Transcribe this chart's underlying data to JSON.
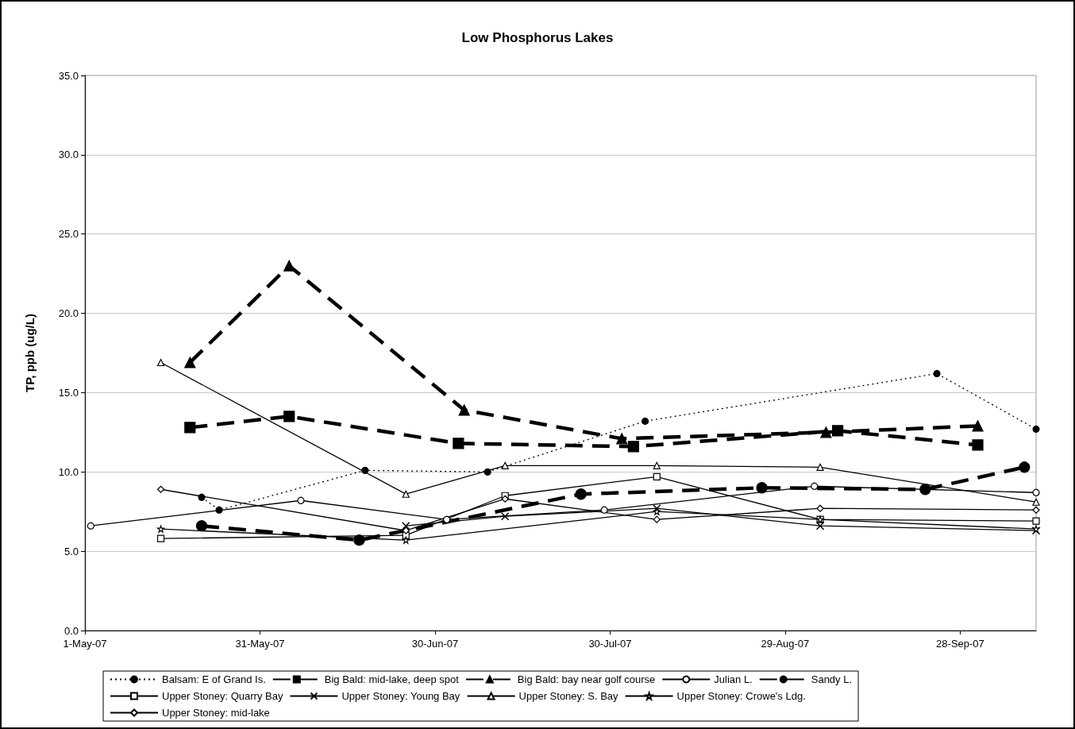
{
  "chart_data": {
    "type": "line",
    "title": "Low Phosphorus Lakes",
    "ylabel": "TP, ppb (ug/L)",
    "xlim": [
      "2007-05-01",
      "2007-10-11"
    ],
    "xticks": [
      {
        "value": "2007-05-01",
        "label": "1-May-07"
      },
      {
        "value": "2007-05-31",
        "label": "31-May-07"
      },
      {
        "value": "2007-06-30",
        "label": "30-Jun-07"
      },
      {
        "value": "2007-07-30",
        "label": "30-Jul-07"
      },
      {
        "value": "2007-08-29",
        "label": "29-Aug-07"
      },
      {
        "value": "2007-09-28",
        "label": "28-Sep-07"
      }
    ],
    "ylim": [
      0,
      35
    ],
    "yticks": [
      {
        "value": 0,
        "label": "0.0"
      },
      {
        "value": 5,
        "label": "5.0"
      },
      {
        "value": 10,
        "label": "10.0"
      },
      {
        "value": 15,
        "label": "15.0"
      },
      {
        "value": 20,
        "label": "20.0"
      },
      {
        "value": 25,
        "label": "25.0"
      },
      {
        "value": 30,
        "label": "30.0"
      },
      {
        "value": 35,
        "label": "35.0"
      }
    ],
    "grid": "y",
    "legend": "bottom",
    "series": [
      {
        "name": "Balsam: E of Grand Is.",
        "color": "#000000",
        "marker": "circle",
        "line_style": "dotted",
        "x": [
          "2007-05-21",
          "2007-05-24",
          "2007-06-18",
          "2007-07-09",
          "2007-08-05",
          "2007-09-24",
          "2007-10-11"
        ],
        "values": [
          8.4,
          7.6,
          10.1,
          10.0,
          13.2,
          16.2,
          12.7
        ]
      },
      {
        "name": "Big Bald: mid-lake, deep spot",
        "color": "#000000",
        "marker": "square",
        "line_style": "dashed",
        "x": [
          "2007-05-19",
          "2007-06-05",
          "2007-07-04",
          "2007-08-03",
          "2007-09-07",
          "2007-10-01"
        ],
        "values": [
          12.8,
          13.5,
          11.8,
          11.6,
          12.6,
          11.7
        ]
      },
      {
        "name": "Big Bald: bay near golf course",
        "color": "#000000",
        "marker": "triangle",
        "line_style": "dashed",
        "x": [
          "2007-05-19",
          "2007-06-05",
          "2007-07-05",
          "2007-08-01",
          "2007-09-05",
          "2007-10-01"
        ],
        "values": [
          16.9,
          23.0,
          13.9,
          12.1,
          12.5,
          12.9
        ]
      },
      {
        "name": "Julian L.",
        "color": "#000000",
        "marker": "circle",
        "line_style": "solid",
        "x": [
          "2007-05-02",
          "2007-06-07",
          "2007-07-02",
          "2007-07-29",
          "2007-09-03",
          "2007-10-11"
        ],
        "values": [
          6.6,
          8.2,
          7.0,
          7.6,
          9.1,
          8.7
        ]
      },
      {
        "name": "Sandy L.",
        "color": "#000000",
        "marker": "circle",
        "line_style": "dashed",
        "x": [
          "2007-05-21",
          "2007-06-17",
          "2007-07-25",
          "2007-08-25",
          "2007-09-22",
          "2007-10-09"
        ],
        "values": [
          6.6,
          5.7,
          8.6,
          9.0,
          8.9,
          10.3
        ]
      },
      {
        "name": "Upper Stoney: Quarry Bay",
        "color": "#000000",
        "marker": "square",
        "line_style": "solid",
        "x": [
          "2007-05-14",
          "2007-06-25",
          "2007-07-12",
          "2007-08-07",
          "2007-09-04",
          "2007-10-11"
        ],
        "values": [
          5.8,
          6.0,
          8.5,
          9.7,
          7.0,
          6.9
        ]
      },
      {
        "name": "Upper Stoney: Young Bay",
        "color": "#000000",
        "marker": "cross",
        "line_style": "solid",
        "x": [
          "2007-06-25",
          "2007-07-12",
          "2007-08-07",
          "2007-09-04",
          "2007-10-11"
        ],
        "values": [
          6.6,
          7.2,
          7.7,
          6.6,
          6.3
        ]
      },
      {
        "name": "Upper Stoney: S. Bay",
        "color": "#000000",
        "marker": "triangle",
        "line_style": "solid",
        "x": [
          "2007-05-14",
          "2007-06-25",
          "2007-07-12",
          "2007-08-07",
          "2007-09-04",
          "2007-10-11"
        ],
        "values": [
          16.9,
          8.6,
          10.4,
          10.4,
          10.3,
          8.1
        ]
      },
      {
        "name": "Upper Stoney: Crowe's Ldg.",
        "color": "#000000",
        "marker": "star",
        "line_style": "solid",
        "x": [
          "2007-05-14",
          "2007-06-25",
          "2007-08-07",
          "2007-09-04",
          "2007-10-11"
        ],
        "values": [
          6.4,
          5.7,
          7.5,
          7.0,
          6.4
        ]
      },
      {
        "name": "Upper Stoney: mid-lake",
        "color": "#000000",
        "marker": "diamond",
        "line_style": "solid",
        "x": [
          "2007-05-14",
          "2007-06-25",
          "2007-07-12",
          "2007-08-07",
          "2007-09-04",
          "2007-10-11"
        ],
        "values": [
          8.9,
          6.3,
          8.3,
          7.0,
          7.7,
          7.6
        ]
      }
    ]
  }
}
